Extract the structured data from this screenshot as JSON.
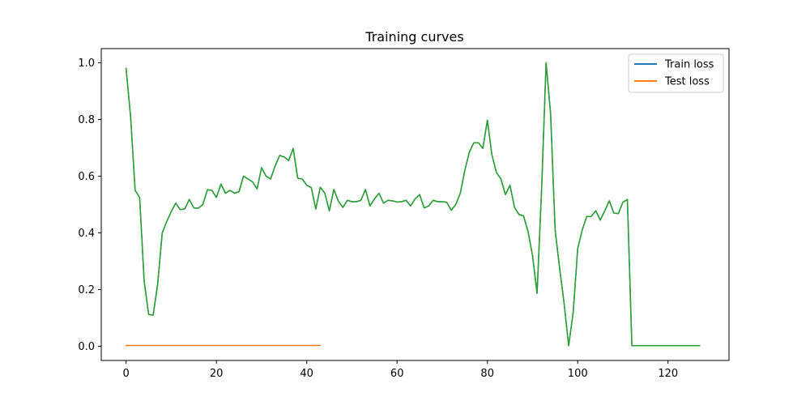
{
  "chart_data": {
    "type": "line",
    "title": "Training curves",
    "xlabel": "",
    "ylabel": "",
    "xlim": [
      -5.5,
      133.5
    ],
    "ylim": [
      -0.05,
      1.05
    ],
    "xticks": [
      0,
      20,
      40,
      60,
      80,
      100,
      120
    ],
    "yticks": [
      0.0,
      0.2,
      0.4,
      0.6,
      0.8,
      1.0
    ],
    "xtick_labels": [
      "0",
      "20",
      "40",
      "60",
      "80",
      "100",
      "120"
    ],
    "ytick_labels": [
      "0.0",
      "0.2",
      "0.4",
      "0.6",
      "0.8",
      "1.0"
    ],
    "grid": false,
    "legend_position": "top-right",
    "series": [
      {
        "name": "Train loss",
        "color": "#1f77b4",
        "in_legend": true,
        "x": [
          0,
          1,
          2,
          3,
          4,
          5,
          6,
          7,
          8,
          9,
          10,
          11,
          12,
          13,
          14,
          15,
          16,
          17,
          18,
          19,
          20,
          21,
          22,
          23,
          24,
          25,
          26,
          27,
          28,
          29,
          30,
          31,
          32,
          33,
          34,
          35,
          36,
          37,
          38,
          39,
          40,
          41,
          42,
          43,
          44,
          45,
          46,
          47,
          48,
          49,
          50,
          51,
          52,
          53,
          54,
          55,
          56,
          57,
          58,
          59,
          60,
          61,
          62,
          63,
          64,
          65,
          66,
          67,
          68,
          69,
          70,
          71,
          72,
          73,
          74,
          75,
          76,
          77,
          78,
          79,
          80,
          81,
          82,
          83,
          84,
          85,
          86,
          87,
          88,
          89,
          90,
          91,
          92,
          93,
          94,
          95,
          96,
          97,
          98,
          99,
          100,
          101,
          102,
          103,
          104,
          105,
          106,
          107,
          108,
          109,
          110,
          111,
          112,
          113,
          114,
          115,
          116,
          117,
          118,
          119,
          120,
          121,
          122,
          123,
          124,
          125,
          126,
          127
        ],
        "values": [
          0.98,
          0.81,
          0.55,
          0.525,
          0.23,
          0.112,
          0.11,
          0.22,
          0.4,
          0.44,
          0.475,
          0.505,
          0.482,
          0.485,
          0.518,
          0.488,
          0.487,
          0.5,
          0.552,
          0.55,
          0.525,
          0.572,
          0.54,
          0.55,
          0.54,
          0.545,
          0.6,
          0.59,
          0.58,
          0.555,
          0.63,
          0.6,
          0.59,
          0.636,
          0.673,
          0.668,
          0.655,
          0.698,
          0.593,
          0.59,
          0.568,
          0.56,
          0.484,
          0.561,
          0.54,
          0.478,
          0.553,
          0.512,
          0.49,
          0.515,
          0.51,
          0.51,
          0.515,
          0.553,
          0.495,
          0.52,
          0.54,
          0.505,
          0.515,
          0.513,
          0.509,
          0.51,
          0.515,
          0.495,
          0.52,
          0.535,
          0.488,
          0.495,
          0.515,
          0.51,
          0.51,
          0.508,
          0.48,
          0.5,
          0.54,
          0.62,
          0.685,
          0.718,
          0.718,
          0.698,
          0.798,
          0.675,
          0.613,
          0.59,
          0.535,
          0.568,
          0.49,
          0.465,
          0.46,
          0.405,
          0.32,
          0.187,
          0.55,
          1.0,
          0.82,
          0.41,
          0.275,
          0.15,
          0.002,
          0.12,
          0.345,
          0.41,
          0.458,
          0.458,
          0.478,
          0.445,
          0.478,
          0.513,
          0.47,
          0.468,
          0.508,
          0.518,
          0.002,
          0.002,
          0.002,
          0.002,
          0.002,
          0.002,
          0.002,
          0.002,
          0.002,
          0.002,
          0.002,
          0.002,
          0.002,
          0.002,
          0.002,
          0.002
        ]
      },
      {
        "name": "Test loss",
        "color": "#ff7f0e",
        "in_legend": true,
        "x": [
          0,
          43
        ],
        "values": [
          0.003,
          0.003
        ]
      },
      {
        "name": "",
        "color": "#2ca02c",
        "in_legend": false,
        "x": [
          0,
          1,
          2,
          3,
          4,
          5,
          6,
          7,
          8,
          9,
          10,
          11,
          12,
          13,
          14,
          15,
          16,
          17,
          18,
          19,
          20,
          21,
          22,
          23,
          24,
          25,
          26,
          27,
          28,
          29,
          30,
          31,
          32,
          33,
          34,
          35,
          36,
          37,
          38,
          39,
          40,
          41,
          42,
          43,
          44,
          45,
          46,
          47,
          48,
          49,
          50,
          51,
          52,
          53,
          54,
          55,
          56,
          57,
          58,
          59,
          60,
          61,
          62,
          63,
          64,
          65,
          66,
          67,
          68,
          69,
          70,
          71,
          72,
          73,
          74,
          75,
          76,
          77,
          78,
          79,
          80,
          81,
          82,
          83,
          84,
          85,
          86,
          87,
          88,
          89,
          90,
          91,
          92,
          93,
          94,
          95,
          96,
          97,
          98,
          99,
          100,
          101,
          102,
          103,
          104,
          105,
          106,
          107,
          108,
          109,
          110,
          111,
          112,
          113,
          114,
          115,
          116,
          117,
          118,
          119,
          120,
          121,
          122,
          123,
          124,
          125,
          126,
          127
        ],
        "values": [
          0.98,
          0.81,
          0.55,
          0.525,
          0.23,
          0.112,
          0.11,
          0.22,
          0.4,
          0.44,
          0.475,
          0.505,
          0.482,
          0.485,
          0.518,
          0.488,
          0.487,
          0.5,
          0.552,
          0.55,
          0.525,
          0.572,
          0.54,
          0.55,
          0.54,
          0.545,
          0.6,
          0.59,
          0.58,
          0.555,
          0.63,
          0.6,
          0.59,
          0.636,
          0.673,
          0.668,
          0.655,
          0.698,
          0.593,
          0.59,
          0.568,
          0.56,
          0.484,
          0.561,
          0.54,
          0.478,
          0.553,
          0.512,
          0.49,
          0.515,
          0.51,
          0.51,
          0.515,
          0.553,
          0.495,
          0.52,
          0.54,
          0.505,
          0.515,
          0.513,
          0.509,
          0.51,
          0.515,
          0.495,
          0.52,
          0.535,
          0.488,
          0.495,
          0.515,
          0.51,
          0.51,
          0.508,
          0.48,
          0.5,
          0.54,
          0.62,
          0.685,
          0.718,
          0.718,
          0.698,
          0.798,
          0.675,
          0.613,
          0.59,
          0.535,
          0.568,
          0.49,
          0.465,
          0.46,
          0.405,
          0.32,
          0.187,
          0.55,
          1.0,
          0.82,
          0.41,
          0.275,
          0.15,
          0.002,
          0.12,
          0.345,
          0.41,
          0.458,
          0.458,
          0.478,
          0.445,
          0.478,
          0.513,
          0.47,
          0.468,
          0.508,
          0.518,
          0.002,
          0.002,
          0.002,
          0.002,
          0.002,
          0.002,
          0.002,
          0.002,
          0.002,
          0.002,
          0.002,
          0.002,
          0.002,
          0.002,
          0.002,
          0.002
        ]
      }
    ]
  }
}
